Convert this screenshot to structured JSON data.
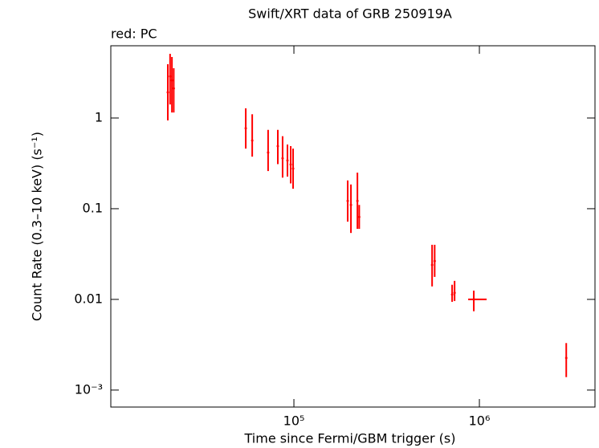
{
  "chart_data": {
    "type": "scatter",
    "title": "Swift/XRT data of GRB 250919A",
    "subtitle": "red: PC",
    "x_label": "Time since Fermi/GBM trigger (s)",
    "y_label": "Count Rate (0.3–10 keV) (s⁻¹)",
    "xscale": "log",
    "yscale": "log",
    "xlim": [
      10300,
      4200000
    ],
    "ylim": [
      0.00065,
      6.26
    ],
    "xticks": [
      {
        "value": 100000,
        "label": "10⁵"
      },
      {
        "value": 1000000,
        "label": "10⁶"
      }
    ],
    "yticks": [
      1,
      0.1,
      0.01,
      {
        "value": 0.001,
        "label": "10⁻³"
      }
    ],
    "series": [
      {
        "name": "PC",
        "color": "#ff0000",
        "x": [
          20900,
          21500,
          22000,
          22500,
          55000,
          59600,
          72600,
          81900,
          86900,
          92300,
          96100,
          99000,
          195000,
          203000,
          220000,
          225000,
          556000,
          574000,
          713000,
          735000,
          933000,
          2940000
        ],
        "values": [
          1.92,
          2.88,
          2.6,
          2.12,
          0.77,
          0.565,
          0.416,
          0.49,
          0.36,
          0.34,
          0.307,
          0.277,
          0.122,
          0.11,
          0.122,
          0.081,
          0.024,
          0.0265,
          0.0113,
          0.0118,
          0.01,
          0.00226
        ],
        "y_low": [
          0.94,
          1.41,
          1.15,
          1.15,
          0.46,
          0.375,
          0.26,
          0.31,
          0.22,
          0.226,
          0.19,
          0.166,
          0.072,
          0.054,
          0.06,
          0.06,
          0.0139,
          0.0177,
          0.0094,
          0.0096,
          0.0074,
          0.00139
        ],
        "y_high": [
          3.92,
          5.1,
          4.7,
          3.54,
          1.28,
          1.1,
          0.74,
          0.74,
          0.63,
          0.51,
          0.49,
          0.46,
          0.205,
          0.185,
          0.25,
          0.11,
          0.04,
          0.04,
          0.0145,
          0.016,
          0.0125,
          0.0033
        ],
        "x_low": [
          null,
          null,
          null,
          null,
          null,
          null,
          null,
          null,
          null,
          null,
          null,
          null,
          null,
          null,
          null,
          null,
          null,
          null,
          null,
          null,
          870000,
          null
        ],
        "x_high": [
          null,
          null,
          null,
          null,
          null,
          null,
          null,
          null,
          null,
          null,
          null,
          null,
          null,
          null,
          null,
          null,
          null,
          null,
          null,
          null,
          1094000,
          null
        ]
      }
    ]
  }
}
